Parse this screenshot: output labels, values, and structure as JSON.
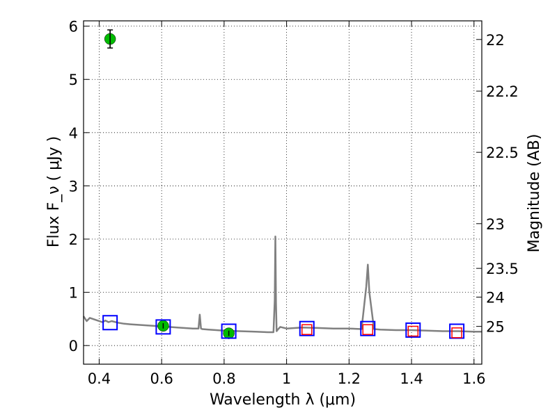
{
  "chart_data": {
    "type": "scatter",
    "title": "",
    "xlabel": "Wavelength λ (μm)",
    "ylabel": "Flux F_ν ( μJy )",
    "y2label": "Magnitude (AB)",
    "xlim": [
      0.35,
      1.625
    ],
    "ylim": [
      -0.35,
      6.1
    ],
    "grid": true,
    "x_ticks": [
      0.4,
      0.6,
      0.8,
      1.0,
      1.2,
      1.4,
      1.6
    ],
    "x_tick_labels": [
      "0.4",
      "0.6",
      "0.8",
      "1",
      "1.2",
      "1.4",
      "1.6"
    ],
    "y_ticks": [
      0,
      1,
      2,
      3,
      4,
      5,
      6
    ],
    "y_tick_labels": [
      "0",
      "1",
      "2",
      "3",
      "4",
      "5",
      "6"
    ],
    "y2_ticks": [
      {
        "label": "22",
        "flux": 5.75
      },
      {
        "label": "22.2",
        "flux": 4.78
      },
      {
        "label": "22.5",
        "flux": 3.63
      },
      {
        "label": "23",
        "flux": 2.29
      },
      {
        "label": "23.5",
        "flux": 1.45
      },
      {
        "label": "24",
        "flux": 0.91
      },
      {
        "label": "25",
        "flux": 0.36
      }
    ],
    "series": [
      {
        "kind": "line",
        "color": "#808080",
        "x": [
          0.35,
          0.36,
          0.37,
          0.38,
          0.39,
          0.4,
          0.41,
          0.42,
          0.43,
          0.44,
          0.46,
          0.48,
          0.5,
          0.55,
          0.6,
          0.65,
          0.7,
          0.718,
          0.722,
          0.726,
          0.73,
          0.75,
          0.8,
          0.85,
          0.9,
          0.94,
          0.958,
          0.962,
          0.964,
          0.966,
          0.968,
          0.972,
          0.98,
          1.0,
          1.05,
          1.1,
          1.15,
          1.2,
          1.24,
          1.255,
          1.26,
          1.265,
          1.28,
          1.3,
          1.35,
          1.4,
          1.45,
          1.5,
          1.55,
          1.6,
          1.625
        ],
        "y": [
          0.55,
          0.46,
          0.52,
          0.5,
          0.48,
          0.46,
          0.44,
          0.47,
          0.44,
          0.46,
          0.43,
          0.41,
          0.4,
          0.38,
          0.36,
          0.34,
          0.32,
          0.32,
          0.58,
          0.32,
          0.31,
          0.3,
          0.28,
          0.27,
          0.26,
          0.25,
          0.25,
          0.85,
          2.05,
          0.8,
          0.27,
          0.3,
          0.35,
          0.32,
          0.34,
          0.33,
          0.32,
          0.32,
          0.31,
          1.1,
          1.52,
          1.0,
          0.31,
          0.3,
          0.29,
          0.29,
          0.28,
          0.27,
          0.27,
          0.26,
          0.26
        ]
      },
      {
        "kind": "points",
        "marker": "circle",
        "color": "#00bb00",
        "x": [
          0.435,
          0.605,
          0.815
        ],
        "y": [
          5.76,
          0.37,
          0.23
        ],
        "yerr": [
          0.17,
          0.05,
          0.05
        ]
      },
      {
        "kind": "points",
        "marker": "square",
        "color": "#0000ff",
        "x": [
          0.435,
          0.605,
          0.815,
          1.065,
          1.26,
          1.405,
          1.545
        ],
        "y": [
          0.43,
          0.35,
          0.27,
          0.32,
          0.32,
          0.29,
          0.27
        ]
      },
      {
        "kind": "points",
        "marker": "square",
        "color": "#ff0000",
        "x": [
          1.065,
          1.26,
          1.405,
          1.545
        ],
        "y": [
          0.3,
          0.3,
          0.27,
          0.24
        ]
      }
    ]
  }
}
